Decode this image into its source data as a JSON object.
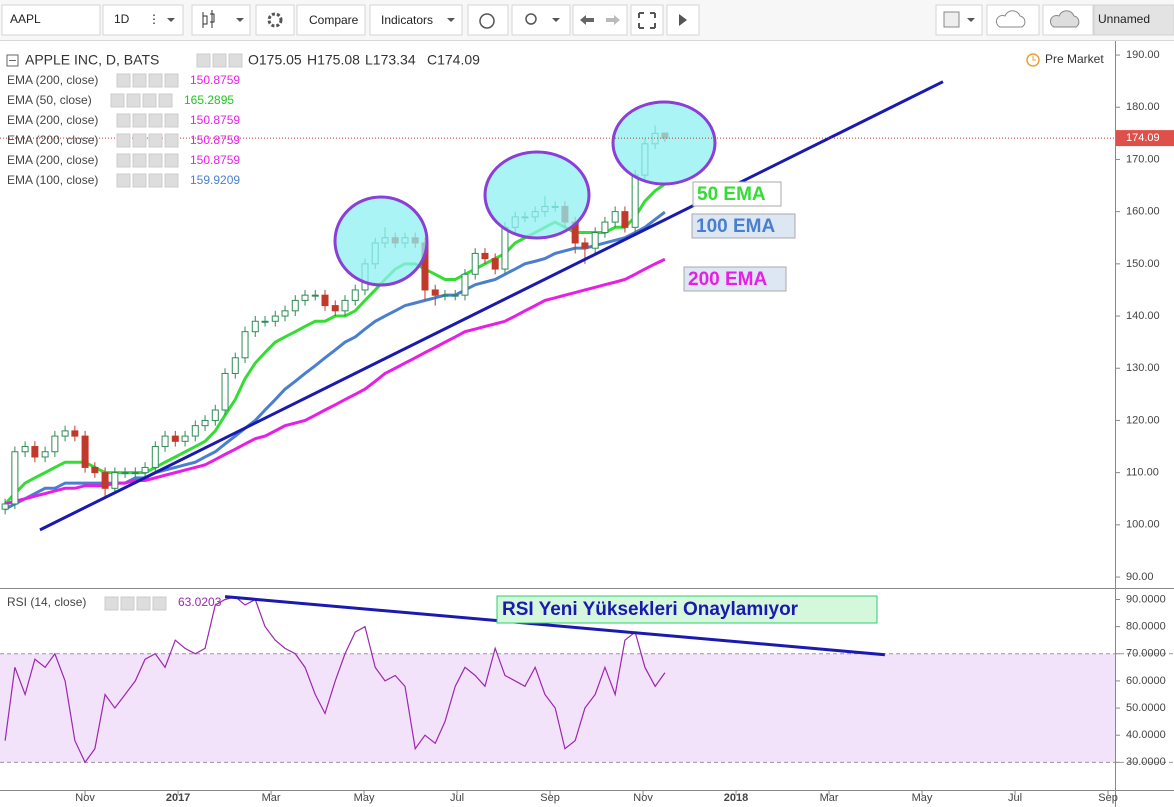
{
  "toolbar": {
    "symbol": "AAPL",
    "interval": "1D",
    "compare": "Compare",
    "indicators": "Indicators",
    "layout": "Unnamed"
  },
  "header": {
    "title": "APPLE INC, D, BATS",
    "ohlc": [
      "O175.05",
      "H175.08",
      "L173.34",
      "C174.09"
    ],
    "session": "Pre Market"
  },
  "legend_rows": [
    {
      "label": "EMA (200, close)",
      "value": 150.8759,
      "color": "#e81ee8"
    },
    {
      "label": "EMA (50, close)",
      "value": 165.2895,
      "color": "#22c422"
    },
    {
      "label": "EMA (200, close)",
      "value": 150.8759,
      "color": "#e81ee8"
    },
    {
      "label": "EMA (200, close)",
      "value": 150.8759,
      "color": "#e81ee8"
    },
    {
      "label": "EMA (200, close)",
      "value": 150.8759,
      "color": "#e81ee8"
    },
    {
      "label": "EMA (100, close)",
      "value": 159.9209,
      "color": "#4a7fcf"
    }
  ],
  "chart_data": [
    {
      "type": "candlestick",
      "up_color": "#2e8b57",
      "down_color": "#c0392b",
      "x": [
        -2.72,
        -2.51,
        -2.29,
        -2.08,
        -1.86,
        -1.65,
        -1.43,
        -1.22,
        -1.0,
        -0.79,
        -0.57,
        -0.36,
        -0.14,
        0.08,
        0.29,
        0.51,
        0.72,
        0.94,
        1.15,
        1.37,
        1.58,
        1.8,
        2.01,
        2.23,
        2.44,
        2.66,
        2.87,
        3.09,
        3.3,
        3.52,
        3.73,
        3.95,
        4.16,
        4.38,
        4.59,
        4.81,
        5.02,
        5.24,
        5.45,
        5.67,
        5.88,
        6.1,
        6.31,
        6.53,
        6.74,
        6.96,
        7.17,
        7.39,
        7.6,
        7.82,
        8.03,
        8.25,
        8.46,
        8.68,
        8.89,
        9.11,
        9.32,
        9.54,
        9.75,
        9.97,
        10.18,
        10.4,
        10.61,
        10.83,
        11.04,
        11.26,
        11.47
      ],
      "open": [
        103,
        104,
        114,
        115,
        113,
        114,
        117,
        118,
        117,
        111,
        110,
        107,
        110,
        110,
        110,
        111,
        115,
        117,
        116,
        117,
        119,
        120,
        122,
        129,
        132,
        137,
        139,
        139,
        140,
        141,
        143,
        144,
        144,
        142,
        141,
        143,
        145,
        150,
        154,
        155,
        154,
        155,
        154,
        145,
        144,
        144,
        144,
        148,
        152,
        151,
        149,
        157,
        159,
        159,
        160,
        161,
        161,
        158,
        154,
        153,
        156,
        158,
        160,
        157,
        167,
        173,
        175.05
      ],
      "high": [
        105,
        115,
        116,
        116,
        115,
        118,
        119,
        119,
        118,
        112,
        111,
        111,
        111,
        111,
        112,
        116,
        118,
        118,
        118,
        120,
        121,
        123,
        130,
        133,
        138,
        140,
        140,
        141,
        142,
        144,
        145,
        145,
        145,
        143,
        144,
        146,
        151,
        155,
        157,
        156,
        156,
        156,
        155,
        146,
        145,
        145,
        149,
        153,
        153,
        152,
        158,
        160,
        160,
        161,
        163,
        162,
        162,
        159,
        155,
        157,
        159,
        161,
        161,
        168,
        174,
        176.5,
        175.08
      ],
      "low": [
        102,
        103,
        113,
        112,
        112,
        113,
        116,
        116,
        110,
        109,
        105,
        106,
        109,
        109,
        109,
        110,
        114,
        115,
        115,
        116,
        118,
        119,
        121,
        128,
        131,
        136,
        138,
        138,
        139,
        140,
        142,
        143,
        141,
        140,
        140,
        142,
        144,
        149,
        153,
        153,
        153,
        153,
        143,
        142,
        143,
        143,
        143,
        147,
        150,
        148,
        148,
        156,
        158,
        158,
        159,
        160,
        157,
        152,
        150,
        152,
        155,
        157,
        156,
        156,
        166,
        172,
        173.34
      ],
      "close": [
        104,
        114,
        115,
        113,
        114,
        117,
        118,
        117,
        111,
        110,
        107,
        110,
        110,
        110,
        111,
        115,
        117,
        116,
        117,
        119,
        120,
        122,
        129,
        132,
        137,
        139,
        139,
        140,
        141,
        143,
        144,
        144,
        142,
        141,
        143,
        145,
        150,
        154,
        155,
        154,
        155,
        154,
        145,
        144,
        144,
        144,
        148,
        152,
        151,
        149,
        157,
        159,
        159,
        160,
        161,
        161,
        158,
        154,
        153,
        156,
        158,
        160,
        157,
        167,
        173,
        175,
        174.09
      ],
      "series": [
        {
          "name": "50 EMA",
          "color": "#33dd33",
          "values": [
            104,
            106,
            108,
            109,
            110,
            111,
            112,
            112,
            112,
            111,
            110,
            110,
            110,
            110,
            110,
            111,
            112,
            113,
            114,
            115,
            116,
            118,
            121,
            124,
            128,
            131,
            133,
            135,
            136,
            137,
            138,
            139,
            139,
            140,
            140,
            141,
            143,
            145,
            147,
            149,
            150,
            150,
            149,
            148,
            147,
            147,
            148,
            149,
            150,
            151,
            152,
            154,
            155,
            156,
            157,
            158,
            157,
            156,
            156,
            156,
            156,
            157,
            157,
            159,
            162,
            164,
            165.29
          ]
        },
        {
          "name": "100 EMA",
          "color": "#4a7fcf",
          "values": [
            103,
            104,
            105,
            106,
            107,
            107,
            108,
            108,
            108,
            108,
            108,
            108,
            108,
            109,
            109,
            110,
            110.5,
            111,
            111.5,
            112,
            113,
            114,
            115.5,
            117,
            118.5,
            120,
            122,
            124,
            126,
            127.5,
            129,
            130.5,
            132,
            133.5,
            135,
            136,
            137.5,
            139,
            140,
            141,
            142,
            142.5,
            143,
            143.5,
            144,
            144,
            145,
            146,
            146.5,
            147,
            148,
            149,
            150,
            150.5,
            151,
            152,
            152.5,
            153,
            153,
            153.5,
            154,
            154.5,
            155,
            156,
            157,
            158.5,
            159.92
          ]
        },
        {
          "name": "200 EMA",
          "color": "#e81ee8",
          "values": [
            104,
            104.5,
            105,
            105.5,
            106,
            106.5,
            107,
            107,
            107.5,
            107.5,
            107.5,
            108,
            108,
            108.5,
            108.5,
            109,
            109.5,
            110,
            110.5,
            111,
            111.5,
            112.5,
            113.5,
            114.5,
            115.5,
            116.5,
            117,
            118,
            119,
            119.5,
            120,
            121,
            122,
            123,
            124,
            125,
            126,
            127.5,
            129,
            130,
            131,
            132,
            133,
            134,
            135,
            136,
            137,
            137.5,
            138,
            138.5,
            139,
            140,
            141,
            142,
            143,
            143.5,
            144,
            144.5,
            145,
            145.5,
            146,
            146.5,
            147,
            148,
            149,
            150,
            150.88
          ]
        }
      ],
      "trendline": {
        "color": "#1a1ab0",
        "x": [
          -1.97,
          17.45
        ],
        "y": [
          99.04,
          184.9
        ]
      },
      "xlim": [
        -2.83,
        21.15
      ],
      "xticks": [
        {
          "value": -1,
          "label": "Nov"
        },
        {
          "value": 1,
          "label": "2017"
        },
        {
          "value": 3,
          "label": "Mar"
        },
        {
          "value": 5,
          "label": "May"
        },
        {
          "value": 7,
          "label": "Jul"
        },
        {
          "value": 9,
          "label": "Sep"
        },
        {
          "value": 11,
          "label": "Nov"
        },
        {
          "value": 13,
          "label": "2018"
        },
        {
          "value": 15,
          "label": "Mar"
        },
        {
          "value": 17,
          "label": "May"
        },
        {
          "value": 19,
          "label": "Jul"
        },
        {
          "value": 21,
          "label": "Sep"
        }
      ],
      "ylim": [
        87.9,
        192.5
      ],
      "yticks": [
        {
          "value": 90,
          "label": "90.00"
        },
        {
          "value": 100,
          "label": "100.00"
        },
        {
          "value": 110,
          "label": "110.00"
        },
        {
          "value": 120,
          "label": "120.00"
        },
        {
          "value": 130,
          "label": "130.00"
        },
        {
          "value": 140,
          "label": "140.00"
        },
        {
          "value": 150,
          "label": "150.00"
        },
        {
          "value": 160,
          "label": "160.00"
        },
        {
          "value": 170,
          "label": "170.00"
        },
        {
          "value": 180,
          "label": "180.00"
        },
        {
          "value": 190,
          "label": "190.00"
        }
      ]
    },
    {
      "type": "line",
      "name": "RSI (14, close)",
      "last": 63.0203,
      "color": "#9c27b0",
      "band": [
        30,
        70
      ],
      "band_color": "#f3e3fa",
      "values": [
        38,
        65,
        55,
        68,
        65,
        70,
        60,
        38,
        30,
        35,
        55,
        50,
        55,
        60,
        68,
        70,
        65,
        75,
        72,
        70,
        72,
        88,
        90,
        91,
        88,
        90,
        80,
        75,
        72,
        70,
        65,
        55,
        48,
        60,
        70,
        78,
        80,
        65,
        60,
        62,
        58,
        35,
        40,
        37,
        45,
        58,
        65,
        62,
        58,
        72,
        62,
        60,
        58,
        65,
        55,
        50,
        35,
        38,
        50,
        55,
        65,
        55,
        75,
        78,
        65,
        58,
        63.02
      ],
      "annotation": "RSI Yeni Yüksekleri Onaylamıyor",
      "trendline": {
        "color": "#1a1ab0",
        "x": [
          2.01,
          16.2
        ],
        "y": [
          91.05,
          69.65
        ]
      },
      "ylim": [
        19.8,
        93.5
      ],
      "yticks": [
        {
          "value": 30,
          "label": "30.0000"
        },
        {
          "value": 40,
          "label": "40.0000"
        },
        {
          "value": 50,
          "label": "50.0000"
        },
        {
          "value": 60,
          "label": "60.0000"
        },
        {
          "value": 70,
          "label": "70.0000"
        },
        {
          "value": 80,
          "label": "80.0000"
        },
        {
          "value": 90,
          "label": "90.0000"
        }
      ]
    }
  ]
}
